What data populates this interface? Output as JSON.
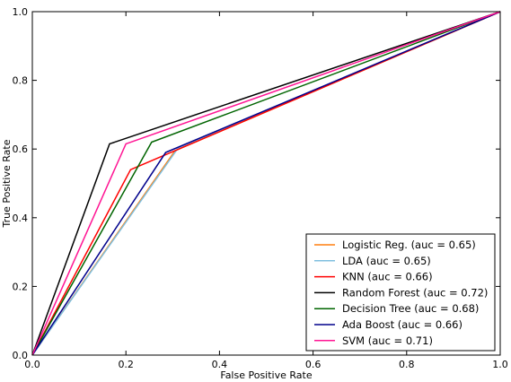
{
  "chart_data": {
    "type": "line",
    "title": "",
    "xlabel": "False Positive Rate",
    "ylabel": "True Positive Rate",
    "xlim": [
      0.0,
      1.0
    ],
    "ylim": [
      0.0,
      1.0
    ],
    "xticks": [
      "0.0",
      "0.2",
      "0.4",
      "0.6",
      "0.8",
      "1.0"
    ],
    "yticks": [
      "0.0",
      "0.2",
      "0.4",
      "0.6",
      "0.8",
      "1.0"
    ],
    "grid": false,
    "legend_position": "lower-right",
    "series": [
      {
        "name": "Logistic Reg. (auc = 0.65)",
        "color": "#ff7f0e",
        "x": [
          0,
          0.305,
          1
        ],
        "y": [
          0,
          0.595,
          1
        ]
      },
      {
        "name": "LDA (auc = 0.65)",
        "color": "#7fbfdf",
        "x": [
          0,
          0.31,
          1
        ],
        "y": [
          0,
          0.6,
          1
        ]
      },
      {
        "name": "KNN (auc = 0.66)",
        "color": "#ff0000",
        "x": [
          0,
          0.21,
          1
        ],
        "y": [
          0,
          0.54,
          1
        ]
      },
      {
        "name": "Random Forest (auc = 0.72)",
        "color": "#000000",
        "x": [
          0,
          0.165,
          1
        ],
        "y": [
          0,
          0.615,
          1
        ]
      },
      {
        "name": "Decision Tree (auc = 0.68)",
        "color": "#006400",
        "x": [
          0,
          0.255,
          1
        ],
        "y": [
          0,
          0.62,
          1
        ]
      },
      {
        "name": "Ada Boost (auc = 0.66)",
        "color": "#00008b",
        "x": [
          0,
          0.285,
          1
        ],
        "y": [
          0,
          0.59,
          1
        ]
      },
      {
        "name": "SVM (auc = 0.71)",
        "color": "#ff1493",
        "x": [
          0,
          0.2,
          1
        ],
        "y": [
          0,
          0.615,
          1
        ]
      }
    ]
  }
}
